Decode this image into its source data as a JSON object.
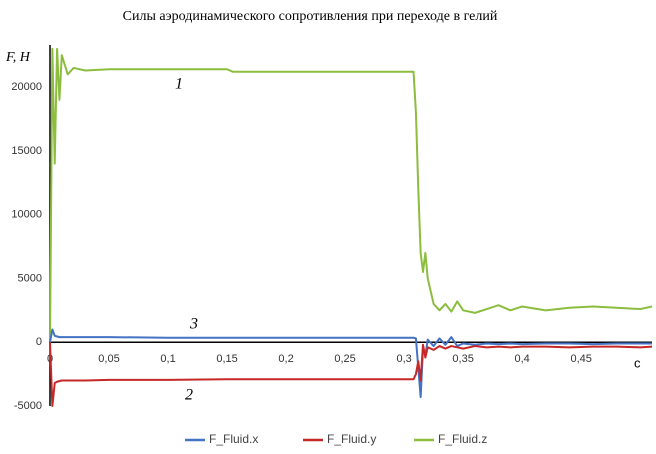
{
  "chart_data": {
    "type": "line",
    "title": "Силы аэродинамического сопротивления при переходе в гелий",
    "y_label": "F, H",
    "x_label": "c",
    "annotations": [
      "1",
      "2",
      "3"
    ],
    "x": [
      0,
      0.002,
      0.004,
      0.006,
      0.008,
      0.01,
      0.015,
      0.02,
      0.03,
      0.05,
      0.1,
      0.15,
      0.155,
      0.2,
      0.25,
      0.3,
      0.308,
      0.31,
      0.312,
      0.314,
      0.316,
      0.318,
      0.32,
      0.325,
      0.33,
      0.335,
      0.34,
      0.345,
      0.35,
      0.36,
      0.37,
      0.38,
      0.39,
      0.4,
      0.42,
      0.44,
      0.46,
      0.48,
      0.5,
      0.51
    ],
    "series": [
      {
        "name": "F_Fluid.x",
        "color": "#4472c4",
        "values": [
          0,
          1000,
          500,
          450,
          400,
          400,
          400,
          400,
          400,
          400,
          350,
          350,
          350,
          350,
          350,
          350,
          350,
          300,
          -2000,
          -4300,
          -500,
          -1000,
          200,
          -300,
          300,
          -200,
          400,
          -300,
          -100,
          -200,
          -100,
          -150,
          -100,
          -150,
          -100,
          -100,
          -150,
          -100,
          -100,
          -100
        ]
      },
      {
        "name": "F_Fluid.y",
        "color": "#c62828",
        "values": [
          0,
          -5000,
          -3200,
          -3100,
          -3050,
          -3000,
          -3000,
          -3000,
          -3000,
          -2950,
          -2950,
          -2900,
          -2900,
          -2900,
          -2900,
          -2900,
          -2900,
          -2500,
          -1500,
          -3000,
          -200,
          -1200,
          -400,
          -600,
          -300,
          -500,
          -300,
          -400,
          -500,
          -300,
          -400,
          -350,
          -400,
          -350,
          -350,
          -400,
          -350,
          -350,
          -400,
          -350
        ]
      },
      {
        "name": "F_Fluid.z",
        "color": "#8cbd3f",
        "values": [
          0,
          23000,
          14000,
          23000,
          19000,
          22500,
          21000,
          21500,
          21300,
          21400,
          21400,
          21400,
          21200,
          21200,
          21200,
          21200,
          21200,
          18000,
          12000,
          7000,
          5500,
          7000,
          5000,
          3000,
          2500,
          3000,
          2400,
          3200,
          2500,
          2300,
          2600,
          2900,
          2500,
          2800,
          2500,
          2700,
          2800,
          2700,
          2600,
          2800
        ]
      }
    ],
    "xlim": [
      0,
      0.51
    ],
    "xticks": [
      0,
      {
        "value": 0.05,
        "label": "0,05"
      },
      {
        "value": 0.1,
        "label": "0,1"
      },
      {
        "value": 0.15,
        "label": "0,15"
      },
      {
        "value": 0.2,
        "label": "0,2"
      },
      {
        "value": 0.25,
        "label": "0,25"
      },
      {
        "value": 0.3,
        "label": "0,3"
      },
      {
        "value": 0.35,
        "label": "0,35"
      },
      {
        "value": 0.4,
        "label": "0,4"
      },
      {
        "value": 0.45,
        "label": "0,45"
      }
    ],
    "ylim": [
      -5000,
      23300
    ],
    "yticks": [
      -5000,
      0,
      5000,
      10000,
      15000,
      20000
    ],
    "grid": false
  }
}
